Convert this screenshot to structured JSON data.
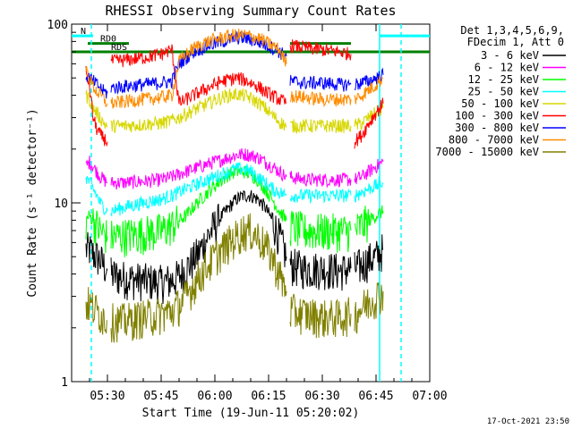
{
  "chart_data": {
    "type": "line",
    "title": "RHESSI Observing Summary Count Rates",
    "xlabel": "Start Time (19-Jun-11 05:20:02)",
    "ylabel": "Count Rate (s⁻¹ detector⁻¹)",
    "x_range_minutes": [
      0,
      100
    ],
    "y_range": [
      1,
      100
    ],
    "y_scale": "log",
    "x_ticks": [
      {
        "label": "05:30",
        "minute": 10
      },
      {
        "label": "05:45",
        "minute": 25
      },
      {
        "label": "06:00",
        "minute": 40
      },
      {
        "label": "06:15",
        "minute": 55
      },
      {
        "label": "06:30",
        "minute": 70
      },
      {
        "label": "06:45",
        "minute": 85
      },
      {
        "label": "07:00",
        "minute": 100
      }
    ],
    "y_ticks": [
      {
        "label": "1",
        "value": 1
      },
      {
        "label": "10",
        "value": 10
      },
      {
        "label": "100",
        "value": 100
      }
    ],
    "legend_header": [
      "Det 1,3,4,5,6,9,",
      "FDecim 1, Att 0"
    ],
    "legend_position": "right",
    "series": [
      {
        "name": "3 - 6 keV",
        "color": "#000000",
        "segments": [
          {
            "x": [
              4,
              5,
              6,
              7,
              8,
              9,
              10
            ],
            "y": [
              5.5,
              5.5,
              5.2,
              5.0,
              4.8,
              4.5,
              4.2
            ]
          },
          {
            "x": [
              11,
              15,
              20,
              25,
              28,
              30,
              32,
              34,
              36,
              38,
              40,
              42,
              44,
              46,
              48,
              50,
              52,
              54,
              56,
              58,
              60
            ],
            "y": [
              4.0,
              3.8,
              3.7,
              3.6,
              3.7,
              3.9,
              4.3,
              4.8,
              5.5,
              6.5,
              7.5,
              8.5,
              9.5,
              10.5,
              11.0,
              11.0,
              10.5,
              9.5,
              8.0,
              6.5,
              5.0
            ]
          },
          {
            "x": [
              61,
              65,
              70,
              75,
              78
            ],
            "y": [
              4.5,
              4.3,
              4.3,
              4.2,
              4.3
            ]
          },
          {
            "x": [
              79,
              81,
              83,
              85,
              87
            ],
            "y": [
              4.3,
              4.5,
              4.8,
              5.0,
              5.5
            ]
          }
        ]
      },
      {
        "name": "6 - 12 keV",
        "color": "#ff00ff",
        "segments": [
          {
            "x": [
              4,
              5,
              6,
              7,
              8,
              9,
              10
            ],
            "y": [
              16,
              17,
              16,
              15,
              14,
              13.5,
              13
            ]
          },
          {
            "x": [
              11,
              15,
              20,
              25,
              28,
              30,
              32,
              34,
              36,
              38,
              40,
              42,
              44,
              46,
              48,
              50,
              52,
              54,
              56,
              58,
              60
            ],
            "y": [
              13,
              13,
              13.2,
              13.5,
              14,
              14.5,
              15,
              15.5,
              16,
              16.5,
              17,
              17.5,
              18,
              18.5,
              18.8,
              18.5,
              18,
              17,
              16,
              15,
              14
            ]
          },
          {
            "x": [
              61,
              65,
              70,
              75,
              78
            ],
            "y": [
              14,
              13.5,
              13.5,
              13.5,
              13.5
            ]
          },
          {
            "x": [
              79,
              81,
              83,
              85,
              87
            ],
            "y": [
              13.5,
              14,
              15,
              16,
              17
            ]
          }
        ]
      },
      {
        "name": "12 - 25 keV",
        "color": "#00ff00",
        "segments": [
          {
            "x": [
              4,
              5,
              6,
              7,
              8,
              9,
              10
            ],
            "y": [
              8,
              8.5,
              8,
              7.5,
              7,
              6.8,
              6.5
            ]
          },
          {
            "x": [
              11,
              15,
              20,
              25,
              28,
              30,
              32,
              34,
              36,
              38,
              40,
              42,
              44,
              46,
              48,
              50,
              52,
              54,
              56,
              58,
              60
            ],
            "y": [
              6.5,
              6.6,
              6.8,
              7,
              7.5,
              8,
              8.5,
              9.5,
              10.5,
              11.5,
              12.5,
              13.5,
              14.5,
              15,
              15,
              14.5,
              13.5,
              12,
              10.5,
              9,
              8
            ]
          },
          {
            "x": [
              61,
              65,
              70,
              75,
              78
            ],
            "y": [
              7.5,
              7,
              7,
              7,
              7
            ]
          },
          {
            "x": [
              79,
              81,
              83,
              85,
              87
            ],
            "y": [
              7,
              7.5,
              8,
              8.5,
              9
            ]
          }
        ]
      },
      {
        "name": "25 - 50 keV",
        "color": "#00ffff",
        "segments": [
          {
            "x": [
              4,
              5,
              6,
              7,
              8,
              9,
              10
            ],
            "y": [
              14,
              13,
              12,
              11,
              10,
              9.5,
              9
            ]
          },
          {
            "x": [
              11,
              15,
              20,
              25,
              28,
              30,
              32,
              34,
              36,
              38,
              40,
              42,
              44,
              46,
              48,
              50,
              52,
              54,
              56,
              58,
              60
            ],
            "y": [
              9,
              9.5,
              10,
              10.5,
              11,
              11.5,
              12,
              12.5,
              13,
              13.5,
              14,
              14.5,
              15,
              15.5,
              15.5,
              15,
              14,
              13,
              12,
              11.5,
              11
            ]
          },
          {
            "x": [
              61,
              65,
              70,
              75,
              78
            ],
            "y": [
              11,
              11,
              11,
              11,
              11
            ]
          },
          {
            "x": [
              79,
              81,
              83,
              85,
              87
            ],
            "y": [
              11,
              11.5,
              12,
              12.5,
              13
            ]
          }
        ]
      },
      {
        "name": "50 - 100 keV",
        "color": "#d7d700",
        "segments": [
          {
            "x": [
              4,
              5,
              6,
              7,
              8,
              9,
              10
            ],
            "y": [
              40,
              38,
              34,
              32,
              30,
              28,
              27
            ]
          },
          {
            "x": [
              11,
              15,
              20,
              25,
              28,
              30,
              32,
              34,
              36,
              38,
              40,
              42,
              44,
              46,
              48,
              50,
              52,
              54,
              56,
              58,
              60
            ],
            "y": [
              27,
              27,
              27.5,
              28,
              29,
              30,
              31.5,
              33,
              34.5,
              36,
              37.5,
              39,
              40,
              40.5,
              40,
              38.5,
              36.5,
              34,
              31,
              28.5,
              27
            ]
          },
          {
            "x": [
              61,
              65,
              70,
              75,
              78
            ],
            "y": [
              27,
              27,
              27,
              27,
              27
            ]
          },
          {
            "x": [
              79,
              81,
              83,
              85,
              87
            ],
            "y": [
              27,
              28,
              30,
              32,
              34
            ]
          }
        ]
      },
      {
        "name": "100 - 300 keV",
        "color": "#ff0000",
        "segments": [
          {
            "x": [
              4,
              5,
              6,
              7,
              8,
              9,
              10
            ],
            "y": [
              55,
              45,
              30,
              26,
              24,
              23,
              22
            ]
          },
          {
            "x": [
              11,
              15,
              20,
              25,
              28,
              30,
              32,
              34,
              36,
              38,
              40,
              42,
              44,
              46,
              48,
              50,
              52,
              54,
              56,
              58,
              60
            ],
            "y": [
              62,
              63,
              65,
              68,
              72,
              36,
              38,
              40,
              42,
              44,
              46,
              48,
              49,
              50,
              49,
              47,
              45,
              42,
              40,
              38,
              36
            ]
          },
          {
            "x": [
              61,
              65,
              70,
              75,
              78
            ],
            "y": [
              76,
              74,
              72,
              70,
              68
            ]
          },
          {
            "x": [
              79,
              81,
              83,
              85,
              87
            ],
            "y": [
              22,
              24,
              28,
              32,
              36
            ]
          }
        ]
      },
      {
        "name": "300 - 800 keV",
        "color": "#0000ff",
        "segments": [
          {
            "x": [
              4,
              5,
              6,
              7,
              8,
              9,
              10
            ],
            "y": [
              52,
              50,
              48,
              46,
              44,
              42,
              41
            ]
          },
          {
            "x": [
              11,
              15,
              20,
              25,
              28,
              30,
              32,
              34,
              36,
              38,
              40,
              42,
              44,
              46,
              48,
              50,
              52,
              54,
              56,
              58,
              60
            ],
            "y": [
              44,
              45,
              46,
              47,
              48,
              60,
              65,
              70,
              73,
              76,
              78,
              80,
              82,
              84,
              84,
              82,
              80,
              77,
              74,
              70,
              66
            ]
          },
          {
            "x": [
              61,
              65,
              70,
              75,
              78
            ],
            "y": [
              48,
              47,
              47,
              46,
              46
            ]
          },
          {
            "x": [
              79,
              81,
              83,
              85,
              87
            ],
            "y": [
              46,
              47,
              48,
              50,
              52
            ]
          }
        ]
      },
      {
        "name": "800 - 7000 keV",
        "color": "#ff8c00",
        "segments": [
          {
            "x": [
              4,
              5,
              6,
              7,
              8,
              9,
              10
            ],
            "y": [
              56,
              50,
              45,
              42,
              40,
              38,
              36
            ]
          },
          {
            "x": [
              11,
              15,
              20,
              25,
              28,
              30,
              32,
              34,
              36,
              38,
              40,
              42,
              44,
              46,
              48,
              50,
              52,
              54,
              56,
              58,
              60
            ],
            "y": [
              36,
              37,
              38,
              39,
              40,
              62,
              68,
              73,
              77,
              80,
              82,
              84,
              86,
              87,
              87,
              86,
              84,
              80,
              76,
              72,
              60
            ]
          },
          {
            "x": [
              61,
              65,
              70,
              75,
              78
            ],
            "y": [
              40,
              39,
              38,
              38,
              38
            ]
          },
          {
            "x": [
              79,
              81,
              83,
              85,
              87
            ],
            "y": [
              38,
              40,
              43,
              46,
              50
            ]
          }
        ]
      },
      {
        "name": "7000 - 15000 keV",
        "color": "#808000",
        "segments": [
          {
            "x": [
              4,
              5,
              6,
              7,
              8,
              9,
              10
            ],
            "y": [
              2.8,
              2.7,
              2.6,
              2.5,
              2.4,
              2.3,
              2.2
            ]
          },
          {
            "x": [
              11,
              15,
              20,
              25,
              28,
              30,
              32,
              34,
              36,
              38,
              40,
              42,
              44,
              46,
              48,
              50,
              52,
              54,
              56,
              58,
              60
            ],
            "y": [
              2.2,
              2.2,
              2.3,
              2.4,
              2.5,
              2.7,
              3,
              3.5,
              4,
              4.5,
              5,
              5.5,
              6,
              6.5,
              7,
              7,
              6.5,
              5.8,
              5,
              4,
              3.2
            ]
          },
          {
            "x": [
              61,
              65,
              70,
              75,
              78
            ],
            "y": [
              2.5,
              2.4,
              2.3,
              2.3,
              2.4
            ]
          },
          {
            "x": [
              79,
              81,
              83,
              85,
              87
            ],
            "y": [
              2.4,
              2.6,
              2.8,
              3,
              3.2
            ]
          }
        ]
      }
    ],
    "flag_bars": [
      {
        "label": "N",
        "color": "#00ffff",
        "y": 86,
        "segments": [
          [
            0,
            6
          ],
          [
            86,
            100
          ]
        ]
      },
      {
        "label": "RD0",
        "color": "#008000",
        "y": 78,
        "segments": [
          [
            4.5,
            16
          ],
          [
            61,
            78
          ]
        ]
      },
      {
        "label": "RDS",
        "color": "#008000",
        "y": 70,
        "segments": [
          [
            0,
            100
          ]
        ]
      }
    ],
    "vertical_markers": [
      {
        "color": "#00ffff",
        "style": "dashed",
        "x": 5.5
      },
      {
        "color": "#00ffff",
        "style": "solid",
        "x": 86
      },
      {
        "color": "#00ffff",
        "style": "dashed",
        "x": 92
      }
    ],
    "footer_text": "17-Oct-2021 23:50",
    "grid": false
  }
}
